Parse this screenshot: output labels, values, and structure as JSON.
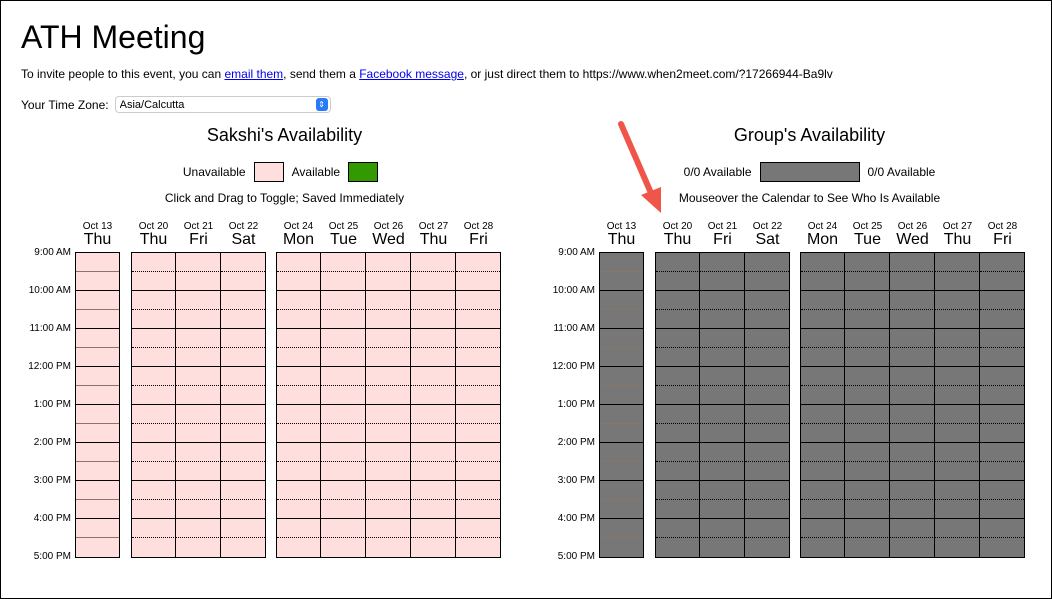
{
  "title": "ATH Meeting",
  "invite": {
    "prefix": "To invite people to this event, you can ",
    "email_link": "email them",
    "mid": ", send them a ",
    "facebook_link": "Facebook message",
    "suffix": ", or just direct them to https://www.when2meet.com/?17266944-Ba9lv"
  },
  "timezone": {
    "label": "Your Time Zone:",
    "value": "Asia/Calcutta"
  },
  "personal": {
    "title": "Sakshi's Availability",
    "unavailable": "Unavailable",
    "available": "Available",
    "hint": "Click and Drag to Toggle; Saved Immediately",
    "unavailable_color": "#ffdede",
    "available_color": "#339900"
  },
  "group": {
    "title": "Group's Availability",
    "left_label": "0/0 Available",
    "right_label": "0/0 Available",
    "hint": "Mouseover the Calendar to See Who Is Available",
    "cell_color": "#777777"
  },
  "days": [
    {
      "date": "Oct 13",
      "day": "Thu",
      "group": 0
    },
    {
      "date": "Oct 20",
      "day": "Thu",
      "group": 1
    },
    {
      "date": "Oct 21",
      "day": "Fri",
      "group": 1
    },
    {
      "date": "Oct 22",
      "day": "Sat",
      "group": 1
    },
    {
      "date": "Oct 24",
      "day": "Mon",
      "group": 2
    },
    {
      "date": "Oct 25",
      "day": "Tue",
      "group": 2
    },
    {
      "date": "Oct 26",
      "day": "Wed",
      "group": 2
    },
    {
      "date": "Oct 27",
      "day": "Thu",
      "group": 2
    },
    {
      "date": "Oct 28",
      "day": "Fri",
      "group": 2
    }
  ],
  "times": [
    "9:00 AM",
    "10:00 AM",
    "11:00 AM",
    "12:00 PM",
    "1:00 PM",
    "2:00 PM",
    "3:00 PM",
    "4:00 PM",
    "5:00 PM"
  ],
  "annotation_color": "#f0554a"
}
